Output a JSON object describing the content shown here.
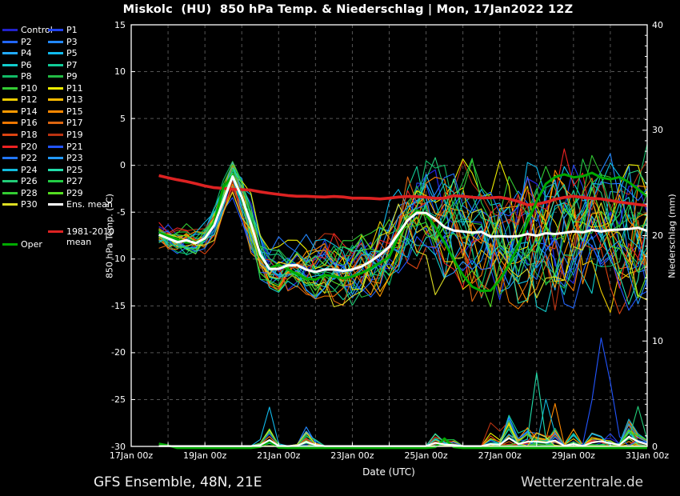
{
  "title": "Miskolc  (HU)  850 hPa Temp. & Niederschlag | Mon, 17Jan2022 12Z",
  "footer": {
    "left": "GFS Ensemble, 48N, 21E",
    "right": "Wetterzentrale.de"
  },
  "chart_data": {
    "type": "line",
    "title": "Miskolc (HU) 850 hPa Temp. & Niederschlag | Mon, 17Jan2022 12Z",
    "x_axis": {
      "label": "Date (UTC)",
      "days": 14,
      "grid_every_days": 1,
      "tick_labels": [
        {
          "day": 0,
          "label": "17Jan 00z"
        },
        {
          "day": 2,
          "label": "19Jan 00z"
        },
        {
          "day": 4,
          "label": "21Jan 00z"
        },
        {
          "day": 6,
          "label": "23Jan 00z"
        },
        {
          "day": 8,
          "label": "25Jan 00z"
        },
        {
          "day": 10,
          "label": "27Jan 00z"
        },
        {
          "day": 12,
          "label": "29Jan 00z"
        },
        {
          "day": 14,
          "label": "31Jan 00z"
        }
      ]
    },
    "y_left": {
      "label": "850 hPa Temp. (°C)",
      "min": -30,
      "max": 15,
      "ticks": [
        15,
        10,
        5,
        0,
        -5,
        -10,
        -15,
        -20,
        -25,
        -30
      ]
    },
    "y_right": {
      "label": "Niederschlag (mm)",
      "min": 0,
      "max": 40,
      "ticks": [
        40,
        30,
        20,
        10,
        0
      ]
    },
    "grid_color": "#555555",
    "axis_color": "#ffffff",
    "legend_rows": [
      [
        "Control",
        "P1"
      ],
      [
        "P2",
        "P3"
      ],
      [
        "P4",
        "P5"
      ],
      [
        "P6",
        "P7"
      ],
      [
        "P8",
        "P9"
      ],
      [
        "P10",
        "P11"
      ],
      [
        "P12",
        "P13"
      ],
      [
        "P14",
        "P15"
      ],
      [
        "P16",
        "P17"
      ],
      [
        "P18",
        "P19"
      ],
      [
        "P20",
        "P21"
      ],
      [
        "P22",
        "P23"
      ],
      [
        "P24",
        "P25"
      ],
      [
        "P26",
        "P27"
      ],
      [
        "P28",
        "P29"
      ],
      [
        "P30",
        "Ens. mean"
      ]
    ],
    "legend_extra": {
      "clim_line1": "1981-2010",
      "clim_line2": "mean",
      "oper": "Oper"
    },
    "colors": {
      "Control": "#2222cc",
      "P1": "#2244ee",
      "P2": "#2266ff",
      "P3": "#2288ff",
      "P4": "#22aaff",
      "P5": "#11bbee",
      "P6": "#11cccc",
      "P7": "#11cc99",
      "P8": "#11bb66",
      "P9": "#22bb44",
      "P10": "#33cc33",
      "P11": "#eeee00",
      "P12": "#eecc00",
      "P13": "#ffbb00",
      "P14": "#ff9900",
      "P15": "#ff8800",
      "P16": "#ee7700",
      "P17": "#dd6611",
      "P18": "#dd4411",
      "P19": "#bb3311",
      "P20": "#ee2222",
      "P21": "#2255ff",
      "P22": "#2277ff",
      "P23": "#2299ff",
      "P24": "#11bbdd",
      "P25": "#22ddaa",
      "P26": "#22cc77",
      "P27": "#22cc44",
      "P28": "#33cc33",
      "P29": "#55dd22",
      "P30": "#dddd22",
      "Ens. mean": "#ffffff",
      "Oper": "#00aa00",
      "1981-2010 mean": "#dd2222"
    },
    "members": [
      "Control",
      "P1",
      "P2",
      "P3",
      "P4",
      "P5",
      "P6",
      "P7",
      "P8",
      "P9",
      "P10",
      "P11",
      "P12",
      "P13",
      "P14",
      "P15",
      "P16",
      "P17",
      "P18",
      "P19",
      "P20",
      "P21",
      "P22",
      "P23",
      "P24",
      "P25",
      "P26",
      "P27",
      "P28",
      "P29",
      "P30"
    ],
    "time": {
      "t0": 0.75,
      "t1": 14,
      "dt": 0.25
    },
    "seed": 20220117,
    "ens_mean_temp": [
      [
        0.75,
        -7.4
      ],
      [
        1.0,
        -7.8
      ],
      [
        1.25,
        -8.2
      ],
      [
        1.5,
        -8.0
      ],
      [
        1.75,
        -8.3
      ],
      [
        2.0,
        -7.8
      ],
      [
        2.25,
        -6.4
      ],
      [
        2.5,
        -3.8
      ],
      [
        2.62,
        -0.6
      ],
      [
        2.8,
        -1.4
      ],
      [
        3.0,
        -3.4
      ],
      [
        3.3,
        -6.8
      ],
      [
        3.6,
        -10.9
      ],
      [
        3.9,
        -11.2
      ],
      [
        4.15,
        -10.8
      ],
      [
        4.4,
        -10.5
      ],
      [
        4.65,
        -10.9
      ],
      [
        4.9,
        -11.5
      ],
      [
        5.15,
        -11.2
      ],
      [
        5.4,
        -11.0
      ],
      [
        5.65,
        -11.3
      ],
      [
        5.9,
        -11.2
      ],
      [
        6.15,
        -11.0
      ],
      [
        6.4,
        -10.5
      ],
      [
        6.7,
        -9.7
      ],
      [
        7.0,
        -8.7
      ],
      [
        7.3,
        -7.0
      ],
      [
        7.6,
        -5.3
      ],
      [
        7.85,
        -4.9
      ],
      [
        8.1,
        -5.2
      ],
      [
        8.35,
        -6.1
      ],
      [
        8.6,
        -6.9
      ],
      [
        8.9,
        -7.0
      ],
      [
        9.2,
        -7.2
      ],
      [
        9.5,
        -7.1
      ],
      [
        9.8,
        -7.7
      ],
      [
        10.1,
        -7.5
      ],
      [
        10.4,
        -7.7
      ],
      [
        10.7,
        -7.3
      ],
      [
        11.0,
        -7.5
      ],
      [
        11.3,
        -7.2
      ],
      [
        11.6,
        -7.4
      ],
      [
        11.9,
        -7.0
      ],
      [
        12.2,
        -7.2
      ],
      [
        12.5,
        -6.9
      ],
      [
        12.8,
        -7.1
      ],
      [
        13.1,
        -6.8
      ],
      [
        13.4,
        -6.9
      ],
      [
        13.7,
        -6.6
      ],
      [
        14.0,
        -7.0
      ]
    ],
    "clim_mean_temp": [
      [
        0.75,
        -1.1
      ],
      [
        1.2,
        -1.5
      ],
      [
        1.6,
        -1.8
      ],
      [
        2.0,
        -2.2
      ],
      [
        2.4,
        -2.5
      ],
      [
        2.62,
        -2.4
      ],
      [
        2.8,
        -2.6
      ],
      [
        3.2,
        -2.6
      ],
      [
        3.6,
        -2.9
      ],
      [
        4.0,
        -3.1
      ],
      [
        4.4,
        -3.3
      ],
      [
        4.8,
        -3.3
      ],
      [
        5.2,
        -3.4
      ],
      [
        5.6,
        -3.3
      ],
      [
        6.0,
        -3.5
      ],
      [
        6.4,
        -3.5
      ],
      [
        6.8,
        -3.6
      ],
      [
        7.2,
        -3.4
      ],
      [
        7.6,
        -3.3
      ],
      [
        8.0,
        -3.4
      ],
      [
        8.4,
        -3.6
      ],
      [
        8.8,
        -3.2
      ],
      [
        9.2,
        -3.4
      ],
      [
        9.6,
        -3.5
      ],
      [
        10.0,
        -3.4
      ],
      [
        10.4,
        -3.7
      ],
      [
        10.8,
        -4.3
      ],
      [
        11.2,
        -4.0
      ],
      [
        11.6,
        -3.5
      ],
      [
        12.0,
        -3.3
      ],
      [
        12.4,
        -3.5
      ],
      [
        12.8,
        -3.6
      ],
      [
        13.2,
        -3.9
      ],
      [
        13.6,
        -4.1
      ],
      [
        14.0,
        -4.3
      ]
    ],
    "oper_temp": [
      [
        0.75,
        -7.2
      ],
      [
        1.2,
        -7.8
      ],
      [
        1.6,
        -8.4
      ],
      [
        2.0,
        -7.9
      ],
      [
        2.3,
        -5.8
      ],
      [
        2.62,
        -0.2
      ],
      [
        2.9,
        -2.2
      ],
      [
        3.2,
        -5.5
      ],
      [
        3.6,
        -11.2
      ],
      [
        4.0,
        -10.6
      ],
      [
        4.4,
        -11.4
      ],
      [
        4.9,
        -12.4
      ],
      [
        5.3,
        -11.6
      ],
      [
        5.7,
        -12.1
      ],
      [
        6.1,
        -11.8
      ],
      [
        6.5,
        -11.0
      ],
      [
        7.0,
        -9.8
      ],
      [
        7.4,
        -6.3
      ],
      [
        7.8,
        -4.6
      ],
      [
        8.1,
        -5.6
      ],
      [
        8.5,
        -8.2
      ],
      [
        8.9,
        -11.2
      ],
      [
        9.3,
        -13.2
      ],
      [
        9.7,
        -13.6
      ],
      [
        10.1,
        -11.8
      ],
      [
        10.5,
        -8.6
      ],
      [
        10.9,
        -4.6
      ],
      [
        11.3,
        -1.6
      ],
      [
        11.7,
        -0.9
      ],
      [
        12.1,
        -1.4
      ],
      [
        12.5,
        -0.8
      ],
      [
        12.9,
        -1.6
      ],
      [
        13.3,
        -1.2
      ],
      [
        13.7,
        -2.4
      ],
      [
        14.0,
        -3.3
      ]
    ],
    "spread": [
      [
        0.75,
        1.0
      ],
      [
        1.5,
        1.1
      ],
      [
        2.0,
        1.2
      ],
      [
        2.62,
        1.5
      ],
      [
        3.0,
        2.0
      ],
      [
        3.3,
        2.3
      ],
      [
        3.6,
        1.9
      ],
      [
        4.0,
        2.1
      ],
      [
        4.5,
        2.3
      ],
      [
        5.0,
        2.5
      ],
      [
        5.5,
        2.7
      ],
      [
        6.0,
        2.9
      ],
      [
        6.5,
        3.1
      ],
      [
        7.0,
        3.4
      ],
      [
        7.5,
        3.8
      ],
      [
        8.0,
        4.2
      ],
      [
        8.5,
        4.6
      ],
      [
        9.0,
        5.0
      ],
      [
        9.5,
        5.3
      ],
      [
        10.0,
        5.6
      ],
      [
        10.5,
        5.8
      ],
      [
        11.0,
        6.0
      ],
      [
        11.5,
        6.1
      ],
      [
        12.0,
        6.2
      ],
      [
        12.5,
        6.1
      ],
      [
        13.0,
        6.0
      ],
      [
        13.5,
        5.9
      ],
      [
        14.0,
        5.9
      ]
    ],
    "precip_events": [
      [
        3.73,
        0.3,
        0.55,
        1.8
      ],
      [
        4.75,
        0.3,
        0.45,
        1.6
      ],
      [
        5.05,
        0.22,
        0.25,
        0.9
      ],
      [
        8.3,
        0.3,
        0.45,
        1.5
      ],
      [
        8.65,
        0.25,
        0.35,
        1.2
      ],
      [
        9.8,
        0.3,
        0.45,
        1.8
      ],
      [
        10.25,
        0.3,
        0.5,
        2.8
      ],
      [
        10.7,
        0.3,
        0.45,
        2.2
      ],
      [
        11.1,
        0.3,
        0.45,
        2.2
      ],
      [
        11.5,
        0.28,
        0.4,
        1.8
      ],
      [
        12.0,
        0.28,
        0.35,
        1.6
      ],
      [
        12.6,
        0.35,
        0.4,
        2.2
      ],
      [
        12.95,
        0.28,
        0.35,
        1.6
      ],
      [
        13.5,
        0.3,
        0.5,
        2.6
      ],
      [
        13.85,
        0.25,
        0.45,
        1.8
      ]
    ],
    "precip_spikes": {
      "P21": [
        12.78,
        0.55,
        10.9
      ],
      "P25": [
        11.0,
        0.3,
        6.9
      ],
      "P24": [
        11.26,
        0.26,
        4.6
      ],
      "P7": [
        10.29,
        0.3,
        3.5
      ],
      "P5": [
        3.73,
        0.3,
        2.3
      ],
      "P26": [
        13.76,
        0.28,
        3.3
      ],
      "P19": [
        9.85,
        0.32,
        2.0
      ],
      "P15": [
        11.5,
        0.26,
        2.6
      ],
      "P3": [
        4.75,
        0.28,
        1.8
      ]
    },
    "oper_precip_bumps": [
      [
        0.85,
        0.25,
        0.8
      ],
      [
        3.73,
        0.3,
        0.7
      ],
      [
        8.5,
        0.3,
        0.9
      ]
    ]
  }
}
